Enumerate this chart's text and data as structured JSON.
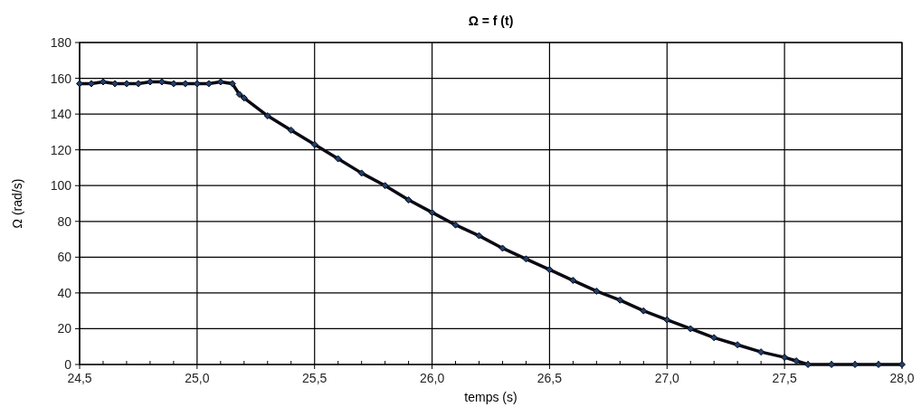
{
  "chart_data": {
    "type": "line",
    "title": "Ω = f (t)",
    "xlabel": "temps (s)",
    "ylabel": "Ω (rad/s)",
    "x": [
      24.5,
      24.55,
      24.6,
      24.65,
      24.7,
      24.75,
      24.8,
      24.85,
      24.9,
      24.95,
      25.0,
      25.05,
      25.1,
      25.15,
      25.18,
      25.2,
      25.3,
      25.4,
      25.5,
      25.6,
      25.7,
      25.8,
      25.9,
      26.0,
      26.1,
      26.2,
      26.3,
      26.4,
      26.5,
      26.6,
      26.7,
      26.8,
      26.9,
      27.0,
      27.1,
      27.2,
      27.3,
      27.4,
      27.5,
      27.55,
      27.6,
      27.7,
      27.8,
      27.9,
      28.0
    ],
    "series": [
      {
        "color": "#0a0a14",
        "values": [
          157,
          157,
          158,
          157,
          157,
          157,
          158,
          158,
          157,
          157,
          157,
          157,
          158,
          157,
          151,
          149,
          139,
          131,
          123,
          115,
          107,
          100,
          92,
          85,
          78,
          72,
          65,
          59,
          53,
          47,
          41,
          36,
          30,
          25,
          20,
          15,
          11,
          7,
          4,
          2,
          0,
          0,
          0,
          0,
          0
        ]
      }
    ],
    "xlim": [
      24.5,
      28.0
    ],
    "xticks": [
      {
        "value": 24.5,
        "label": "24,5"
      },
      {
        "value": 25.0,
        "label": "25,0"
      },
      {
        "value": 25.5,
        "label": "25,5"
      },
      {
        "value": 26.0,
        "label": "26,0"
      },
      {
        "value": 26.5,
        "label": "26,5"
      },
      {
        "value": 27.0,
        "label": "27,0"
      },
      {
        "value": 27.5,
        "label": "27,5"
      },
      {
        "value": 28.0,
        "label": "28,0"
      }
    ],
    "ylim": [
      0,
      180
    ],
    "yticks": [
      0,
      20,
      40,
      60,
      80,
      100,
      120,
      140,
      160,
      180
    ],
    "grid": true,
    "marker": "diamond",
    "line_style": "solid"
  }
}
